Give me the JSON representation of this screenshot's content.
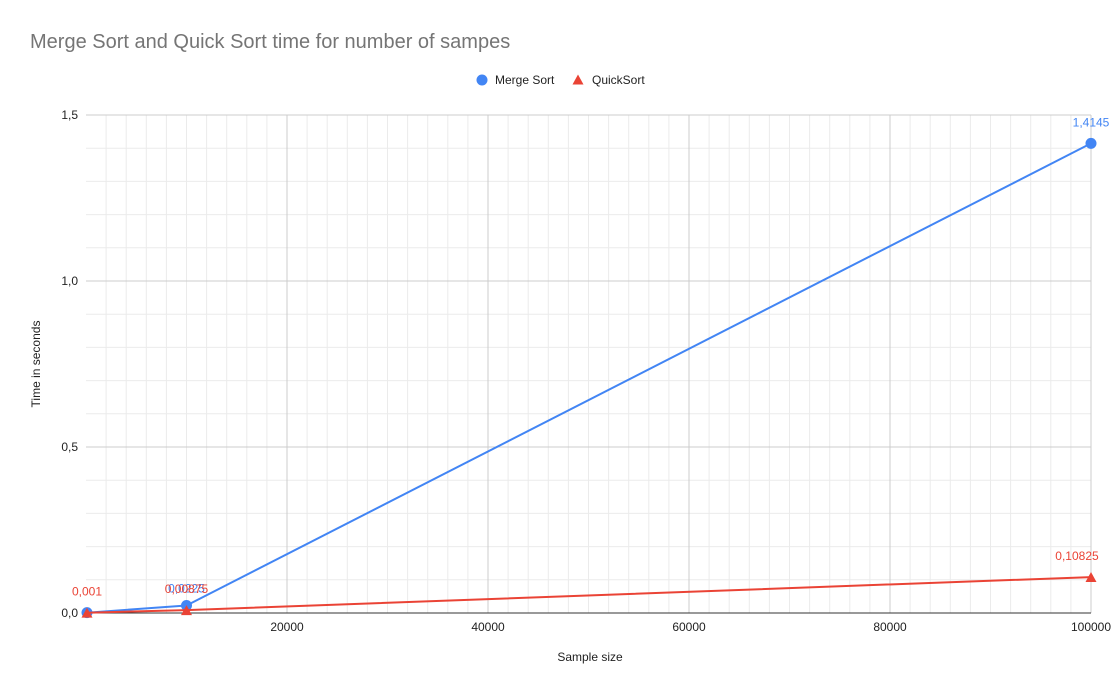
{
  "chart_data": {
    "type": "line",
    "title": "Merge Sort and Quick Sort time for number of sampes",
    "xlabel": "Sample size",
    "ylabel": "Time in seconds",
    "x": [
      100,
      10000,
      100000
    ],
    "xlim": [
      0,
      100000
    ],
    "ylim": [
      0,
      1.5
    ],
    "x_ticks": [
      20000,
      40000,
      60000,
      80000,
      100000
    ],
    "x_tick_labels": [
      "20000",
      "40000",
      "60000",
      "80000",
      "100000"
    ],
    "y_ticks": [
      0,
      0.5,
      1.0,
      1.5
    ],
    "y_tick_labels": [
      "0,0",
      "0,5",
      "1,0",
      "1,5"
    ],
    "grid": true,
    "legend_position": "top",
    "series": [
      {
        "name": "Merge Sort",
        "marker": "circle",
        "color": "#4285f4",
        "values": [
          0.001,
          0.0225,
          1.4145
        ],
        "data_labels": [
          "",
          "0,0225",
          "1,4145"
        ]
      },
      {
        "name": "QuickSort",
        "marker": "triangle",
        "color": "#ea4335",
        "values": [
          0.001,
          0.00875,
          0.10825
        ],
        "data_labels": [
          "0,001",
          "0,00875",
          "0,10825"
        ]
      }
    ]
  }
}
